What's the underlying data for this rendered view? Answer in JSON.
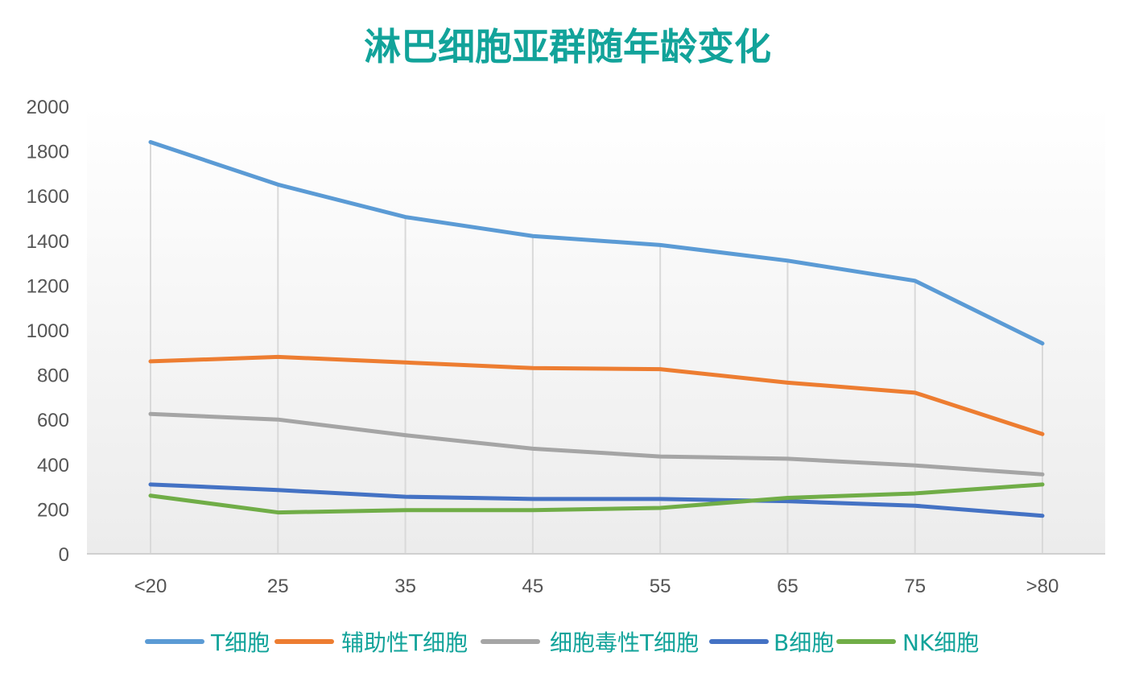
{
  "chart_data": {
    "type": "line",
    "title": "淋巴细胞亚群随年龄变化",
    "xlabel": "",
    "ylabel": "",
    "categories": [
      "<20",
      "25",
      "35",
      "45",
      "55",
      "65",
      "75",
      ">80"
    ],
    "ylim": [
      0,
      2000
    ],
    "yticks": [
      0,
      200,
      400,
      600,
      800,
      1000,
      1200,
      1400,
      1600,
      1800,
      2000
    ],
    "grid": "vertical",
    "legend": "bottom",
    "series": [
      {
        "name": "T细胞",
        "color": "#5b9bd5",
        "values": [
          1840,
          1650,
          1505,
          1420,
          1380,
          1310,
          1220,
          940
        ]
      },
      {
        "name": "辅助性T细胞",
        "color": "#ed7d31",
        "values": [
          860,
          880,
          855,
          830,
          825,
          765,
          720,
          535
        ]
      },
      {
        "name": "细胞毒性T细胞",
        "color": "#a5a5a5",
        "values": [
          625,
          600,
          530,
          470,
          435,
          425,
          395,
          355
        ]
      },
      {
        "name": "B细胞",
        "color": "#4472c4",
        "values": [
          310,
          285,
          255,
          245,
          245,
          235,
          215,
          170
        ]
      },
      {
        "name": "NK细胞",
        "color": "#70ad47",
        "values": [
          260,
          185,
          195,
          195,
          205,
          250,
          270,
          310
        ]
      }
    ]
  }
}
